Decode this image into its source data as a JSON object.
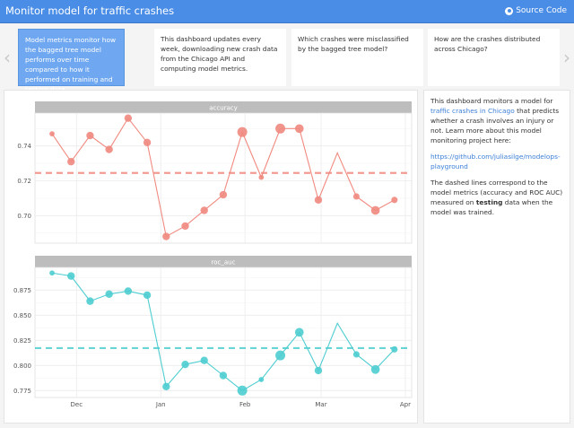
{
  "header": {
    "title": "Monitor model for traffic crashes",
    "source_label": "Source Code",
    "source_icon": "github-icon"
  },
  "colors": {
    "header": "#4a8de6",
    "accuracy": "#f08a80",
    "roc_auc": "#4ecdd0",
    "link": "#3c7fd6"
  },
  "cards": [
    {
      "text": "Model metrics monitor how the bagged tree model performs over time compared to how it performed on training and testing data.",
      "active": true
    },
    {
      "text": "This dashboard updates every week, downloading new crash data from the Chicago API and computing model metrics."
    },
    {
      "text": "Which crashes were misclassified by the bagged tree model?"
    },
    {
      "text": "How are the crashes distributed across Chicago?"
    }
  ],
  "nav": {
    "prev": "‹",
    "next": "›"
  },
  "sidebar": {
    "p1_a": "This dashboard monitors a model for ",
    "p1_link": "traffic crashes in Chicago",
    "p1_b": " that predicts whether a crash involves an injury or not. Learn more about this model monitoring project here:",
    "link": "https://github.com/juliasilge/modelops-playground",
    "p3_a": "The dashed lines correspond to the model metrics (accuracy and ROC AUC) measured on ",
    "p3_bold": "testing",
    "p3_b": " data when the model was trained."
  },
  "chart_data": [
    {
      "type": "line",
      "title": "accuracy",
      "x_ticks": [
        "Dec",
        "Jan",
        "Feb",
        "Mar",
        "Apr"
      ],
      "y_ticks": [
        "0.70",
        "0.72",
        "0.74"
      ],
      "ylim": [
        0.684,
        0.759
      ],
      "grid": true,
      "x": [
        "Nov 22",
        "Nov 29",
        "Dec 6",
        "Dec 13",
        "Dec 20",
        "Dec 27",
        "Jan 3",
        "Jan 10",
        "Jan 17",
        "Jan 24",
        "Jan 31",
        "Feb 7",
        "Feb 14",
        "Feb 21",
        "Feb 28",
        "Mar 7",
        "Mar 14",
        "Mar 21",
        "Mar 28"
      ],
      "values": [
        0.747,
        0.731,
        0.746,
        0.738,
        0.756,
        0.742,
        0.688,
        0.694,
        0.703,
        0.712,
        0.748,
        0.722,
        0.75,
        0.75,
        0.709,
        0.736,
        0.711,
        0.703,
        0.709
      ],
      "point_size": [
        1,
        2,
        2,
        2,
        2,
        2,
        2,
        2,
        2,
        2,
        3,
        1,
        3,
        2.5,
        2,
        0,
        1.5,
        2.5,
        1.5
      ],
      "reference": 0.7245
    },
    {
      "type": "line",
      "title": "roc_auc",
      "x_ticks": [
        "Dec",
        "Jan",
        "Feb",
        "Mar",
        "Apr"
      ],
      "y_ticks": [
        "0.775",
        "0.800",
        "0.825",
        "0.850",
        "0.875"
      ],
      "ylim": [
        0.77,
        0.897
      ],
      "grid": true,
      "x": [
        "Nov 22",
        "Nov 29",
        "Dec 6",
        "Dec 13",
        "Dec 20",
        "Dec 27",
        "Jan 3",
        "Jan 10",
        "Jan 17",
        "Jan 24",
        "Jan 31",
        "Feb 7",
        "Feb 14",
        "Feb 21",
        "Feb 28",
        "Mar 7",
        "Mar 14",
        "Mar 21",
        "Mar 28"
      ],
      "values": [
        0.892,
        0.889,
        0.864,
        0.871,
        0.874,
        0.87,
        0.779,
        0.801,
        0.805,
        0.79,
        0.775,
        0.786,
        0.81,
        0.833,
        0.795,
        0.842,
        0.811,
        0.796,
        0.816
      ],
      "point_size": [
        1,
        2,
        2,
        2,
        2,
        2,
        2,
        2,
        2,
        2,
        3,
        1,
        3,
        2.5,
        2,
        0,
        1.5,
        2.5,
        1.5
      ],
      "reference": 0.8173
    }
  ]
}
